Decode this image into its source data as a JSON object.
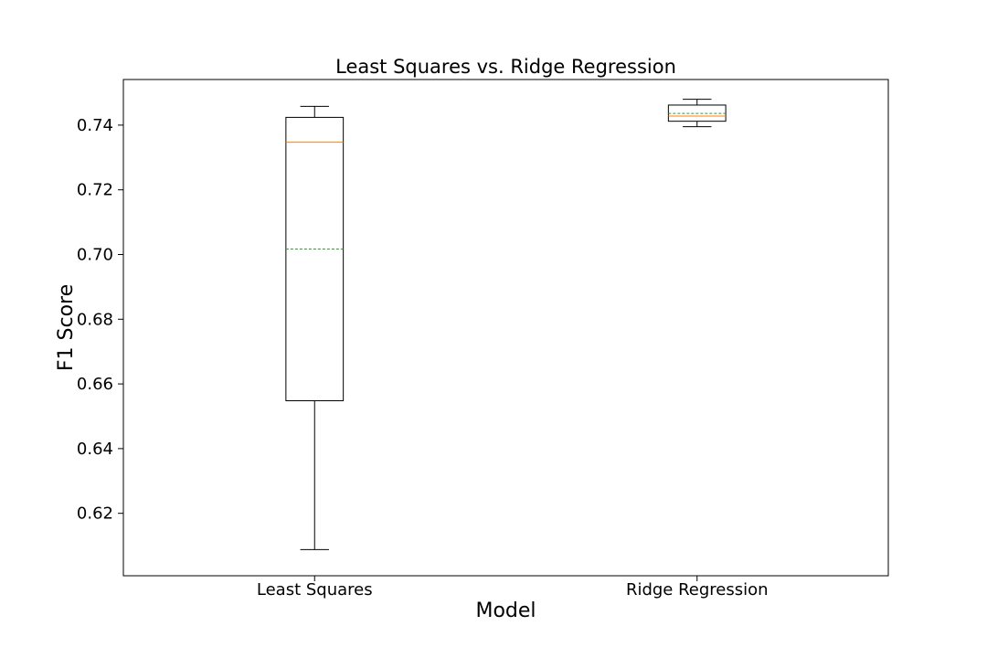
{
  "chart_data": {
    "type": "box",
    "title": "Least Squares vs. Ridge Regression",
    "xlabel": "Model",
    "ylabel": "F1 Score",
    "categories": [
      "Least Squares",
      "Ridge Regression"
    ],
    "boxes": [
      {
        "name": "Least Squares",
        "whisker_low": 0.6088,
        "q1": 0.6548,
        "median": 0.7347,
        "mean": 0.7017,
        "q3": 0.7424,
        "whisker_high": 0.7458
      },
      {
        "name": "Ridge Regression",
        "whisker_low": 0.7395,
        "q1": 0.7412,
        "median": 0.7428,
        "mean": 0.7436,
        "q3": 0.7462,
        "whisker_high": 0.748
      }
    ],
    "ylim": [
      0.6007,
      0.7541
    ],
    "yticks": [
      0.62,
      0.64,
      0.66,
      0.68,
      0.7,
      0.72,
      0.74
    ],
    "ytick_labels": [
      "0.62",
      "0.64",
      "0.66",
      "0.68",
      "0.70",
      "0.72",
      "0.74"
    ],
    "grid": false,
    "colors": {
      "median": "#ff7f0e",
      "mean": "#2ca02c",
      "box": "#000000"
    }
  }
}
